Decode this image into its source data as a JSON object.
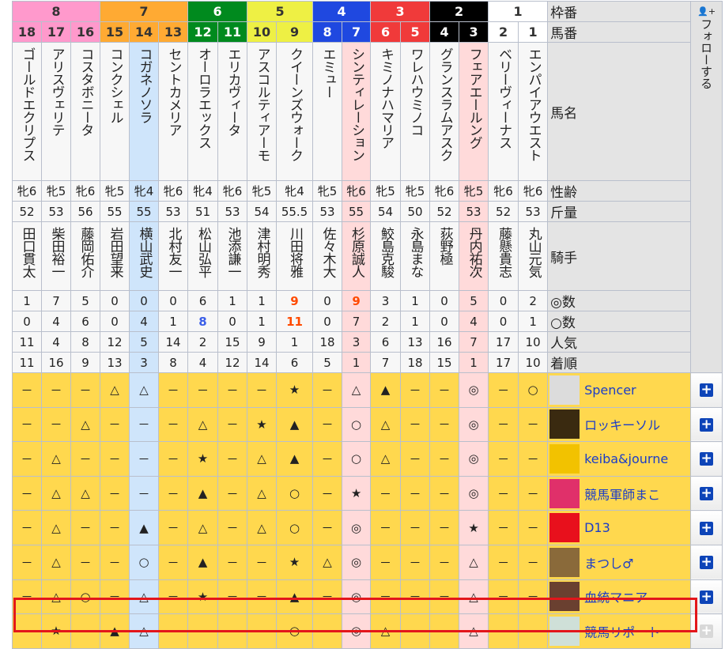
{
  "labels": {
    "frame": "枠番",
    "number": "馬番",
    "name": "馬名",
    "sexage": "性齢",
    "weight": "斤量",
    "jockey": "騎手",
    "honmei": "◎数",
    "taikou": "○数",
    "ninki": "人気",
    "chakujun": "着順"
  },
  "follow": {
    "label": "フォローする",
    "icon": "user-plus-icon"
  },
  "frames": [
    {
      "num": "8",
      "span": 3,
      "bg": "#ff99cc",
      "fg": "#333333"
    },
    {
      "num": "7",
      "span": 3,
      "bg": "#ffaa33",
      "fg": "#333333"
    },
    {
      "num": "6",
      "span": 2,
      "bg": "#008a1e",
      "fg": "#ffffff"
    },
    {
      "num": "5",
      "span": 2,
      "bg": "#eef044",
      "fg": "#333333"
    },
    {
      "num": "4",
      "span": 2,
      "bg": "#1f48e0",
      "fg": "#ffffff"
    },
    {
      "num": "3",
      "span": 2,
      "bg": "#f03a3a",
      "fg": "#ffffff"
    },
    {
      "num": "2",
      "span": 2,
      "bg": "#000000",
      "fg": "#ffffff"
    },
    {
      "num": "1",
      "span": 2,
      "bg": "#ffffff",
      "fg": "#333333"
    }
  ],
  "horses": [
    {
      "num": "18",
      "name": "ゴールドエクリプス",
      "sexage": "牝6",
      "weight": "52",
      "jockey": "田口貫太",
      "honmei": "1",
      "taikou": "0",
      "ninki": "11",
      "chakujun": "11"
    },
    {
      "num": "17",
      "name": "アリスヴェリテ",
      "sexage": "牝5",
      "weight": "53",
      "jockey": "柴田裕一",
      "honmei": "7",
      "taikou": "4",
      "ninki": "4",
      "chakujun": "16"
    },
    {
      "num": "16",
      "name": "コスタボニータ",
      "sexage": "牝6",
      "weight": "56",
      "jockey": "藤岡佑介",
      "honmei": "5",
      "taikou": "6",
      "ninki": "8",
      "chakujun": "9"
    },
    {
      "num": "15",
      "name": "コンクシェル",
      "sexage": "牝5",
      "weight": "55",
      "jockey": "岩田望来",
      "honmei": "0",
      "taikou": "0",
      "ninki": "12",
      "chakujun": "13"
    },
    {
      "num": "14",
      "name": "コガネノソラ",
      "sexage": "牝4",
      "weight": "55",
      "jockey": "横山武史",
      "honmei": "0",
      "taikou": "4",
      "ninki": "5",
      "chakujun": "3",
      "highlight": "blue"
    },
    {
      "num": "13",
      "name": "セントカメリア",
      "sexage": "牝6",
      "weight": "53",
      "jockey": "北村友一",
      "honmei": "0",
      "taikou": "1",
      "ninki": "14",
      "chakujun": "8"
    },
    {
      "num": "12",
      "name": "オーロラエックス",
      "sexage": "牝4",
      "weight": "51",
      "jockey": "松山弘平",
      "honmei": "6",
      "taikou": "8",
      "taikou_color": "#3a5ee8",
      "ninki": "2",
      "chakujun": "4"
    },
    {
      "num": "11",
      "name": "エリカヴィータ",
      "sexage": "牝6",
      "weight": "53",
      "jockey": "池添謙一",
      "honmei": "1",
      "taikou": "0",
      "ninki": "15",
      "chakujun": "12"
    },
    {
      "num": "10",
      "name": "アスコルティアーモ",
      "sexage": "牝5",
      "weight": "54",
      "jockey": "津村明秀",
      "honmei": "1",
      "taikou": "1",
      "ninki": "9",
      "chakujun": "14"
    },
    {
      "num": "9",
      "name": "クイーンズウォーク",
      "sexage": "牝4",
      "weight": "55.5",
      "jockey": "川田将雅",
      "honmei": "9",
      "honmei_color": "#ff4a00",
      "taikou": "11",
      "taikou_color": "#ff4a00",
      "ninki": "1",
      "chakujun": "6"
    },
    {
      "num": "8",
      "name": "エミュー",
      "sexage": "牝5",
      "weight": "53",
      "jockey": "佐々木大",
      "honmei": "0",
      "taikou": "0",
      "ninki": "18",
      "chakujun": "5"
    },
    {
      "num": "7",
      "name": "シンティレーション",
      "sexage": "牝6",
      "weight": "55",
      "jockey": "杉原誠人",
      "honmei": "9",
      "honmei_color": "#ff4a00",
      "taikou": "7",
      "ninki": "3",
      "chakujun": "1",
      "highlight": "pink"
    },
    {
      "num": "6",
      "name": "キミノナハマリア",
      "sexage": "牝5",
      "weight": "54",
      "jockey": "鮫島克駿",
      "honmei": "3",
      "taikou": "2",
      "ninki": "6",
      "chakujun": "7"
    },
    {
      "num": "5",
      "name": "ワレハウミノコ",
      "sexage": "牝5",
      "weight": "50",
      "jockey": "永島まな",
      "honmei": "1",
      "taikou": "1",
      "ninki": "13",
      "chakujun": "18"
    },
    {
      "num": "4",
      "name": "グランスラムアスク",
      "sexage": "牝6",
      "weight": "52",
      "jockey": "荻野極",
      "honmei": "0",
      "taikou": "0",
      "ninki": "16",
      "chakujun": "15"
    },
    {
      "num": "3",
      "name": "フェアエールング",
      "sexage": "牝5",
      "weight": "53",
      "jockey": "丹内祐次",
      "honmei": "5",
      "taikou": "4",
      "ninki": "7",
      "chakujun": "1",
      "highlight": "pink"
    },
    {
      "num": "2",
      "name": "ベリーヴィーナス",
      "sexage": "牝6",
      "weight": "52",
      "jockey": "藤懸貴志",
      "honmei": "0",
      "taikou": "0",
      "ninki": "17",
      "chakujun": "17"
    },
    {
      "num": "1",
      "name": "エンパイアウエスト",
      "sexage": "牝6",
      "weight": "53",
      "jockey": "丸山元気",
      "honmei": "2",
      "taikou": "1",
      "ninki": "10",
      "chakujun": "10"
    }
  ],
  "predictors": [
    {
      "name": "Spencer",
      "avatar": "#dcdcdc",
      "marks": [
        "－",
        "－",
        "－",
        "△",
        "△",
        "－",
        "－",
        "－",
        "－",
        "★",
        "－",
        "△",
        "▲",
        "－",
        "－",
        "◎",
        "－",
        "○"
      ]
    },
    {
      "name": "ロッキーソル",
      "avatar": "#3a2a10",
      "marks": [
        "－",
        "－",
        "△",
        "－",
        "－",
        "－",
        "△",
        "－",
        "★",
        "▲",
        "－",
        "○",
        "△",
        "－",
        "－",
        "◎",
        "－",
        "－"
      ]
    },
    {
      "name": "keiba&journe",
      "avatar": "#f2c200",
      "marks": [
        "－",
        "△",
        "－",
        "－",
        "－",
        "－",
        "★",
        "－",
        "△",
        "▲",
        "－",
        "○",
        "△",
        "－",
        "－",
        "◎",
        "－",
        "－"
      ]
    },
    {
      "name": "競馬軍師まこ",
      "avatar": "#e0306a",
      "marks": [
        "－",
        "△",
        "△",
        "－",
        "－",
        "－",
        "▲",
        "－",
        "△",
        "○",
        "－",
        "★",
        "－",
        "－",
        "－",
        "◎",
        "－",
        "－"
      ]
    },
    {
      "name": "D13",
      "avatar": "#e8101c",
      "marks": [
        "－",
        "△",
        "－",
        "－",
        "▲",
        "－",
        "△",
        "－",
        "△",
        "○",
        "－",
        "◎",
        "－",
        "－",
        "－",
        "★",
        "－",
        "－"
      ]
    },
    {
      "name": "まつし♂",
      "avatar": "#8a6a3a",
      "marks": [
        "－",
        "△",
        "－",
        "－",
        "○",
        "－",
        "▲",
        "－",
        "－",
        "★",
        "△",
        "◎",
        "－",
        "－",
        "－",
        "△",
        "－",
        "－"
      ]
    },
    {
      "name": "血統マニア",
      "avatar": "#6a4030",
      "marks": [
        "－",
        "△",
        "○",
        "－",
        "△",
        "－",
        "★",
        "－",
        "－",
        "▲",
        "－",
        "◎",
        "－",
        "－",
        "－",
        "△",
        "－",
        "－"
      ]
    },
    {
      "name": "競馬リポート",
      "avatar": "#cfe0d8",
      "follow_disabled": true,
      "marks": [
        "－",
        "★",
        "－",
        "▲",
        "△",
        "－",
        "－",
        "－",
        "－",
        "○",
        "－",
        "◎",
        "△",
        "－",
        "－",
        "△",
        "－",
        "－"
      ]
    }
  ]
}
